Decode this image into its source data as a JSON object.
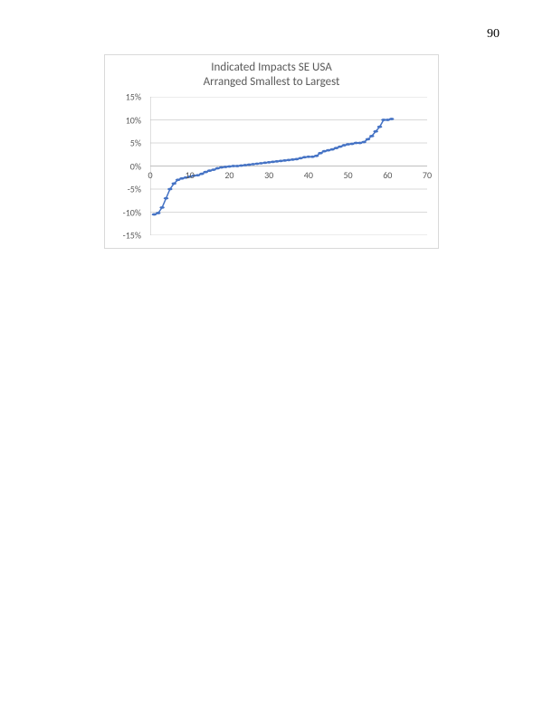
{
  "page_number": "90",
  "chart": {
    "type": "scatter-line",
    "title_line1": "Indicated Impacts SE USA",
    "title_line2": "Arranged Smallest to Largest",
    "title_fontsize": 13,
    "title_color": "#595959",
    "background_color": "#ffffff",
    "border_color": "#d9d9d9",
    "grid_color": "#d9d9d9",
    "axis_color": "#bfbfbf",
    "series_color": "#4472c4",
    "marker_radius": 2.2,
    "line_width": 1.5,
    "axis_label_fontsize": 10,
    "axis_label_color": "#595959",
    "x": {
      "min": 0,
      "max": 70,
      "ticks": [
        0,
        10,
        20,
        30,
        40,
        50,
        60,
        70
      ],
      "tick_labels": [
        "0",
        "10",
        "20",
        "30",
        "40",
        "50",
        "60",
        "70"
      ]
    },
    "y": {
      "min": -15,
      "max": 15,
      "ticks": [
        -15,
        -10,
        -5,
        0,
        5,
        10,
        15
      ],
      "tick_labels": [
        "-15%",
        "-10%",
        "-5%",
        "0%",
        "5%",
        "10%",
        "15%"
      ]
    },
    "data": {
      "x": [
        1,
        2,
        3,
        4,
        5,
        6,
        7,
        8,
        9,
        10,
        11,
        12,
        13,
        14,
        15,
        16,
        17,
        18,
        19,
        20,
        21,
        22,
        23,
        24,
        25,
        26,
        27,
        28,
        29,
        30,
        31,
        32,
        33,
        34,
        35,
        36,
        37,
        38,
        39,
        40,
        41,
        42,
        43,
        44,
        45,
        46,
        47,
        48,
        49,
        50,
        51,
        52,
        53,
        54,
        55,
        56,
        57,
        58,
        59,
        60,
        61
      ],
      "y": [
        -10.5,
        -10.2,
        -9.0,
        -7.0,
        -5.0,
        -3.8,
        -3.0,
        -2.7,
        -2.5,
        -2.3,
        -2.1,
        -2.0,
        -1.7,
        -1.3,
        -1.0,
        -0.8,
        -0.5,
        -0.3,
        -0.2,
        -0.1,
        0.0,
        0.0,
        0.1,
        0.2,
        0.3,
        0.4,
        0.5,
        0.6,
        0.7,
        0.8,
        0.9,
        1.0,
        1.1,
        1.2,
        1.3,
        1.4,
        1.5,
        1.7,
        1.9,
        2.0,
        2.0,
        2.2,
        2.8,
        3.2,
        3.4,
        3.6,
        3.9,
        4.2,
        4.5,
        4.7,
        4.8,
        5.0,
        5.0,
        5.2,
        5.8,
        6.5,
        7.5,
        8.5,
        10.0,
        10.0,
        10.2
      ]
    }
  }
}
